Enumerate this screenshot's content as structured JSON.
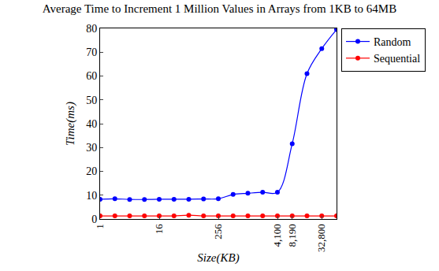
{
  "chart_data": {
    "type": "line",
    "title": "Average Time to Increment 1 Million Values in Arrays from 1KB to 64MB",
    "x_label": "Size(KB)",
    "y_label": "Time(ms)",
    "x": [
      1,
      2,
      4,
      8,
      16,
      32,
      64,
      128,
      256,
      512,
      1024,
      2048,
      4096,
      8192,
      16384,
      32768,
      65536
    ],
    "series": [
      {
        "name": "Random",
        "color": "#0000ff",
        "marker": "circle",
        "line_style": "smooth",
        "values": [
          8.3,
          8.5,
          8.2,
          8.2,
          8.3,
          8.3,
          8.3,
          8.4,
          8.5,
          10.3,
          10.8,
          11.2,
          11.2,
          31.6,
          61.0,
          71.5,
          79.5
        ]
      },
      {
        "name": "Sequential",
        "color": "#ff0000",
        "marker": "circle",
        "line_style": "smooth",
        "values": [
          1.3,
          1.3,
          1.3,
          1.3,
          1.3,
          1.3,
          1.6,
          1.3,
          1.3,
          1.3,
          1.3,
          1.3,
          1.3,
          1.3,
          1.3,
          1.3,
          1.3
        ]
      }
    ],
    "log": "x",
    "xlim": [
      1,
      65536
    ],
    "xticks": [
      1,
      16,
      256,
      {
        "value": 4100,
        "label": "4,100"
      },
      {
        "value": 8190,
        "label": "8,190"
      },
      {
        "value": 32800,
        "label": "32,800"
      }
    ],
    "ylim": [
      0,
      80
    ],
    "yticks": [
      0,
      10,
      20,
      30,
      40,
      50,
      60,
      70,
      80
    ],
    "grid": false,
    "legend": "outside top right"
  }
}
